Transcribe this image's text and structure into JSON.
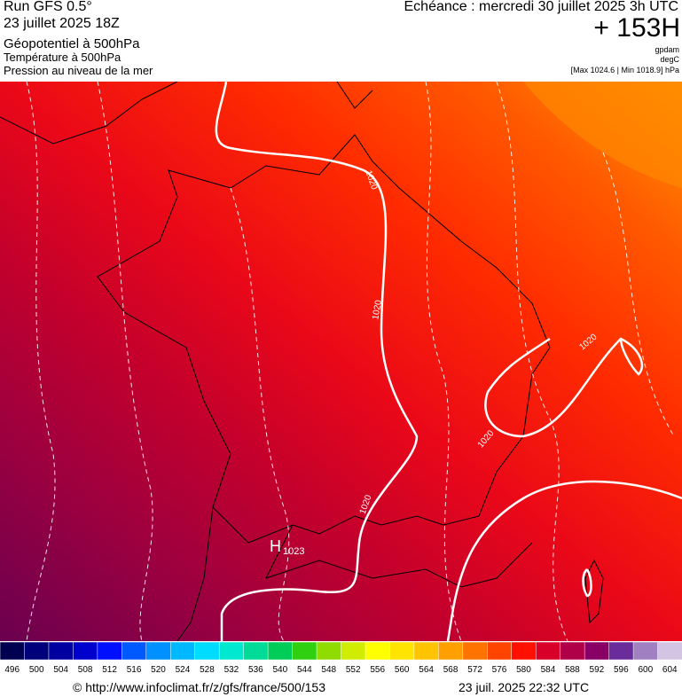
{
  "header": {
    "run": "Run GFS 0.5°",
    "run_date": "23 juillet 2025 18Z",
    "field1": "Géopotentiel à 500hPa",
    "field2": "Température à 500hPa",
    "field3": "Pression au niveau de la mer",
    "echeance": "Echéance : mercredi 30 juillet 2025 3h UTC",
    "lead": "+ 153H",
    "unit1": "gpdam",
    "unit2": "degC",
    "range": "[Max 1024.6 | Min 1018.9] hPa"
  },
  "map": {
    "contour_labels": [
      "1020",
      "1020",
      "1020",
      "1020",
      "1020"
    ],
    "high_symbol": "H",
    "high_value": "1023"
  },
  "colorbar": {
    "ticks": [
      496,
      500,
      504,
      508,
      512,
      516,
      520,
      524,
      528,
      532,
      536,
      540,
      544,
      548,
      552,
      556,
      560,
      564,
      568,
      572,
      576,
      580,
      584,
      588,
      592,
      596,
      600,
      604
    ],
    "colors": [
      "#000050",
      "#00007a",
      "#0000a0",
      "#0000cc",
      "#0010ff",
      "#0058ff",
      "#0090ff",
      "#00b8ff",
      "#00dcff",
      "#00e8d0",
      "#00dc98",
      "#00cc58",
      "#30d010",
      "#90dc00",
      "#d0ec00",
      "#ffff00",
      "#ffe400",
      "#ffc400",
      "#ffa000",
      "#ff7400",
      "#ff4400",
      "#ff1000",
      "#d8002a",
      "#b00048",
      "#880066",
      "#6a2c9a",
      "#a080c0",
      "#d4c4e4"
    ]
  },
  "footer": {
    "source": "© http://www.infoclimat.fr/z/gfs/france/500/153",
    "timestamp": "23 juil. 2025 22:32 UTC"
  }
}
